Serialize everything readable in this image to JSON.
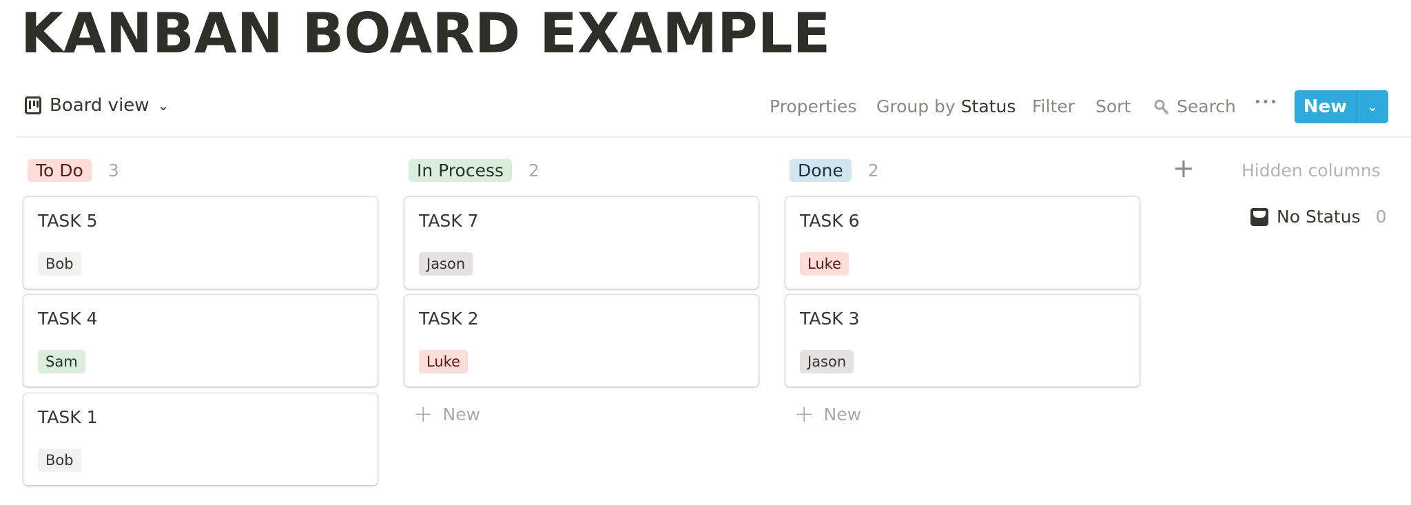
{
  "page": {
    "title": "KANBAN BOARD EXAMPLE"
  },
  "toolbar": {
    "view_label": "Board view",
    "view_icon": "board-icon",
    "properties": "Properties",
    "group_by_prefix": "Group by",
    "group_by_value": "Status",
    "filter": "Filter",
    "sort": "Sort",
    "search": "Search",
    "more": "•••",
    "new": "New",
    "new_dropdown": "⌄",
    "accent": "#2eaadc"
  },
  "columns": [
    {
      "name": "To Do",
      "count": "3",
      "bg": "#fdddd8",
      "fg": "#5d1715",
      "cards": [
        {
          "title": "TASK 5",
          "tag": "Bob",
          "tag_bg": "#f1f1ef",
          "tag_fg": "#37352f"
        },
        {
          "title": "TASK 4",
          "tag": "Sam",
          "tag_bg": "#dbeddb",
          "tag_fg": "#1c3829"
        },
        {
          "title": "TASK 1",
          "tag": "Bob",
          "tag_bg": "#f1f1ef",
          "tag_fg": "#37352f"
        }
      ],
      "new_label": ""
    },
    {
      "name": "In Process",
      "count": "2",
      "bg": "#dbeddb",
      "fg": "#1c3829",
      "cards": [
        {
          "title": "TASK 7",
          "tag": "Jason",
          "tag_bg": "#e3e2e0",
          "tag_fg": "#37352f"
        },
        {
          "title": "TASK 2",
          "tag": "Luke",
          "tag_bg": "#fdddd8",
          "tag_fg": "#5d1715"
        }
      ],
      "new_label": "New"
    },
    {
      "name": "Done",
      "count": "2",
      "bg": "#d3e5ef",
      "fg": "#183347",
      "cards": [
        {
          "title": "TASK 6",
          "tag": "Luke",
          "tag_bg": "#fdddd8",
          "tag_fg": "#5d1715"
        },
        {
          "title": "TASK 3",
          "tag": "Jason",
          "tag_bg": "#e3e2e0",
          "tag_fg": "#37352f"
        }
      ],
      "new_label": "New"
    }
  ],
  "add_column": "+",
  "hidden_columns": {
    "label": "Hidden columns",
    "items": [
      {
        "name": "No Status",
        "count": "0",
        "icon": "inbox-tray-icon"
      }
    ]
  }
}
